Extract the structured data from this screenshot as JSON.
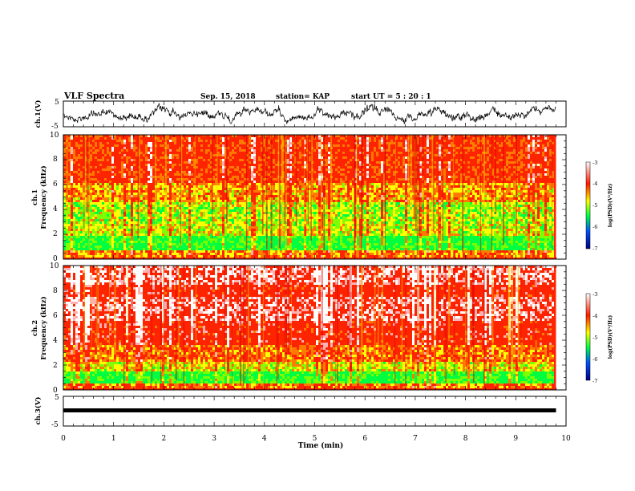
{
  "header": {
    "title": "VLF Spectra",
    "date": "Sep. 15, 2018",
    "station": "station= KAP",
    "start": "start  UT =   5 : 20 : 1"
  },
  "chart_data": [
    {
      "type": "line",
      "name": "ch1-waveform",
      "ylabel": "ch.1(V)",
      "ylim": [
        -5,
        5
      ],
      "y_ticks": [
        "5",
        "-5"
      ],
      "xlim": [
        0,
        10
      ],
      "note_trace": "noisy waveform roughly between -4 and 4 V over 0-9.8 min"
    },
    {
      "type": "heatmap",
      "name": "ch1-spectrogram",
      "ylabel": "ch.1\nFrequency (kHz)",
      "ylabel_line1": "ch.1",
      "ylabel_line2": "Frequency (kHz)",
      "ylim": [
        0,
        10
      ],
      "y_ticks": [
        "0",
        "2",
        "4",
        "6",
        "8",
        "10"
      ],
      "xlim": [
        0,
        10
      ],
      "colorbar": {
        "label": "log(PSD)(V²/Hz)",
        "range": [
          -7,
          -3
        ],
        "ticks": [
          "-3",
          "-4",
          "-5",
          "-6",
          "-7"
        ],
        "colors": [
          "#00007f",
          "#0044ff",
          "#00ff44",
          "#ffff00",
          "#ff2200",
          "#ffffff"
        ]
      }
    },
    {
      "type": "heatmap",
      "name": "ch2-spectrogram",
      "ylabel_line1": "ch.2",
      "ylabel_line2": "Frequency (kHz)",
      "ylim": [
        0,
        10
      ],
      "y_ticks": [
        "0",
        "2",
        "4",
        "6",
        "8",
        "10"
      ],
      "xlim": [
        0,
        10
      ],
      "colorbar": {
        "label": "log(PSD)(V²/Hz)",
        "range": [
          -7,
          -3
        ],
        "ticks": [
          "-3",
          "-4",
          "-5",
          "-6",
          "-7"
        ],
        "colors": [
          "#00007f",
          "#0044ff",
          "#00ff44",
          "#ffff00",
          "#ff2200",
          "#ffffff"
        ]
      }
    },
    {
      "type": "line",
      "name": "ch3-waveform",
      "ylabel": "ch.3(V)",
      "ylim": [
        -5,
        5
      ],
      "y_ticks": [
        "5",
        "-5"
      ],
      "xlim": [
        0,
        10
      ],
      "level": -1.5
    }
  ],
  "x_axis": {
    "label": "Time (min)",
    "ticks": [
      "0",
      "1",
      "2",
      "3",
      "4",
      "5",
      "6",
      "7",
      "8",
      "9",
      "10"
    ],
    "data_end": 9.8
  }
}
